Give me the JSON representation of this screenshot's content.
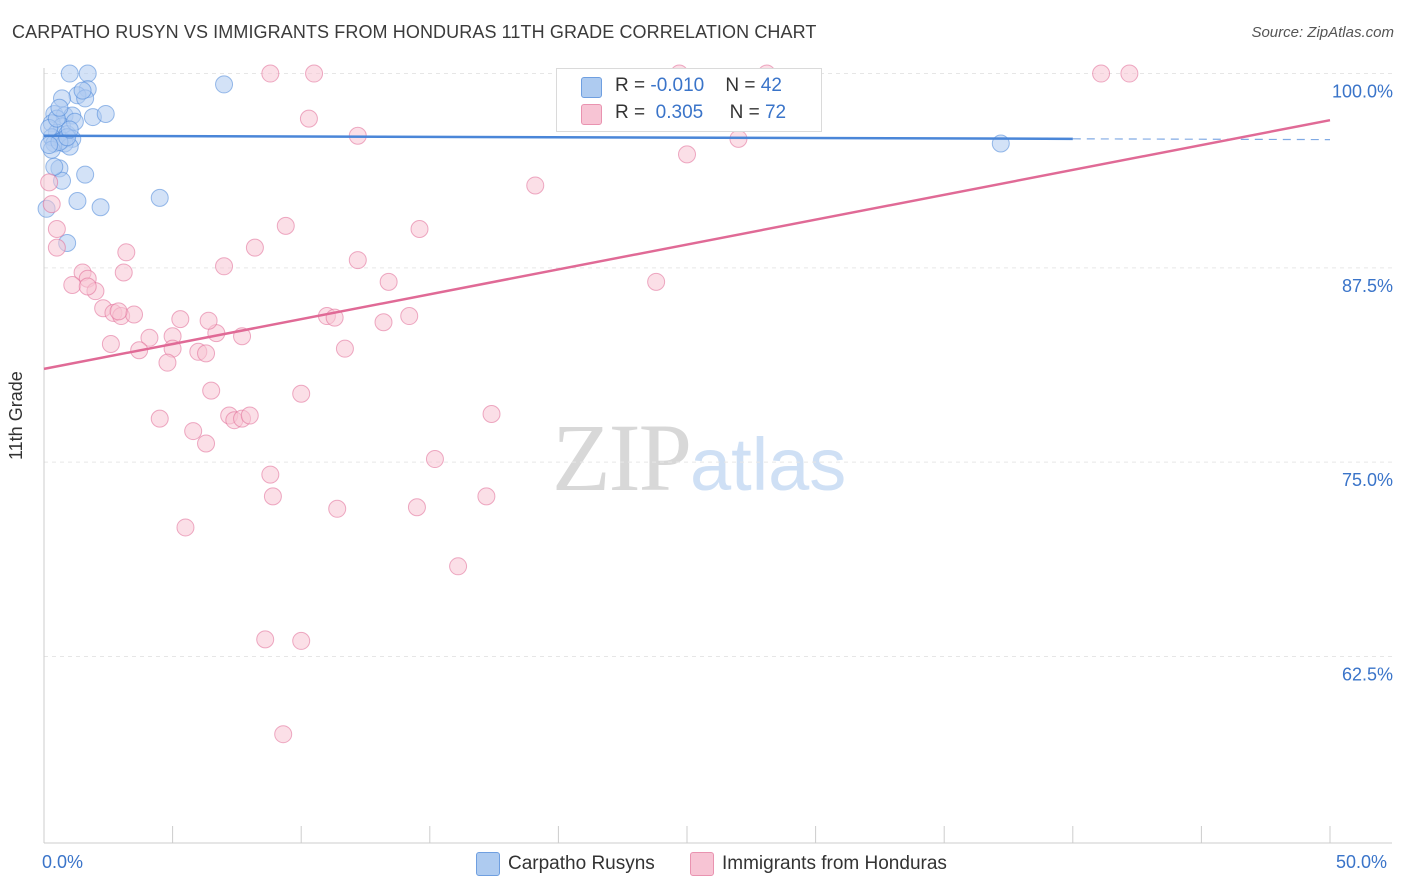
{
  "title": "CARPATHO RUSYN VS IMMIGRANTS FROM HONDURAS 11TH GRADE CORRELATION CHART",
  "source": "Source: ZipAtlas.com",
  "watermark": {
    "zip": "ZIP",
    "atlas": "atlas"
  },
  "legend": {
    "rows": [
      {
        "r_label": "R = ",
        "r_value": "-0.010",
        "n_label": "N = ",
        "n_value": "42",
        "color": "#aecbf0",
        "border": "#6f9fe0"
      },
      {
        "r_label": "R = ",
        "r_value": "0.305",
        "n_label": "N = ",
        "n_value": "72",
        "color": "#f7c4d4",
        "border": "#e993b0"
      }
    ]
  },
  "bottom_legend": [
    {
      "label": "Carpatho Rusyns",
      "color": "#aecbf0",
      "border": "#6f9fe0"
    },
    {
      "label": "Immigrants from Honduras",
      "color": "#f7c4d4",
      "border": "#e993b0"
    }
  ],
  "x_axis_labels": {
    "min": "0.0%",
    "max": "50.0%"
  },
  "chart_data": {
    "type": "scatter",
    "title": "CARPATHO RUSYN VS IMMIGRANTS FROM HONDURAS 11TH GRADE CORRELATION CHART",
    "xlabel": "",
    "ylabel": "11th Grade",
    "xlim": [
      0,
      50
    ],
    "ylim": [
      50.5,
      101
    ],
    "y_ticks": [
      {
        "value": 100,
        "label": "100.0%"
      },
      {
        "value": 87.5,
        "label": "87.5%"
      },
      {
        "value": 75,
        "label": "75.0%"
      },
      {
        "value": 62.5,
        "label": "62.5%"
      }
    ],
    "x_ticks": [
      0,
      5,
      10,
      15,
      20,
      25,
      30,
      35,
      40,
      45,
      50
    ],
    "grid": true,
    "series": [
      {
        "name": "Carpatho Rusyns",
        "color": "#4a86d8",
        "fill": "#aecbf0",
        "r": -0.01,
        "n": 42,
        "trend": {
          "x0": 0,
          "y0": 96.0,
          "x1": 40,
          "y1": 95.8,
          "dash_to": 50
        },
        "points": [
          [
            1.0,
            100.0
          ],
          [
            1.7,
            100.0
          ],
          [
            7.0,
            99.3
          ],
          [
            1.7,
            99.0
          ],
          [
            1.3,
            98.6
          ],
          [
            0.7,
            98.4
          ],
          [
            1.6,
            98.4
          ],
          [
            0.4,
            97.4
          ],
          [
            0.8,
            97.3
          ],
          [
            1.1,
            97.3
          ],
          [
            1.9,
            97.2
          ],
          [
            2.4,
            97.4
          ],
          [
            0.3,
            96.8
          ],
          [
            0.7,
            96.6
          ],
          [
            0.5,
            96.2
          ],
          [
            0.9,
            96.1
          ],
          [
            0.3,
            95.9
          ],
          [
            0.7,
            95.7
          ],
          [
            1.1,
            95.8
          ],
          [
            0.4,
            95.5
          ],
          [
            0.8,
            95.5
          ],
          [
            1.0,
            95.3
          ],
          [
            0.3,
            95.1
          ],
          [
            0.6,
            95.6
          ],
          [
            37.2,
            95.5
          ],
          [
            0.6,
            93.9
          ],
          [
            1.6,
            93.5
          ],
          [
            0.7,
            93.1
          ],
          [
            4.5,
            92.0
          ],
          [
            1.3,
            91.8
          ],
          [
            2.2,
            91.4
          ],
          [
            0.1,
            91.3
          ],
          [
            0.9,
            89.1
          ],
          [
            0.2,
            96.5
          ],
          [
            1.2,
            96.9
          ],
          [
            0.5,
            97.1
          ],
          [
            0.9,
            95.9
          ],
          [
            1.5,
            98.9
          ],
          [
            0.2,
            95.4
          ],
          [
            0.6,
            97.8
          ],
          [
            1.0,
            96.4
          ],
          [
            0.4,
            94.0
          ]
        ]
      },
      {
        "name": "Immigrants from Honduras",
        "color": "#e06a96",
        "fill": "#f7c4d4",
        "r": 0.305,
        "n": 72,
        "trend": {
          "x0": 0,
          "y0": 81.0,
          "x1": 50,
          "y1": 97.0
        },
        "points": [
          [
            8.8,
            100.0
          ],
          [
            10.5,
            100.0
          ],
          [
            24.7,
            100.0
          ],
          [
            28.1,
            100.0
          ],
          [
            41.1,
            100.0
          ],
          [
            42.2,
            100.0
          ],
          [
            10.3,
            97.1
          ],
          [
            12.2,
            96.0
          ],
          [
            27.0,
            95.8
          ],
          [
            25.0,
            94.8
          ],
          [
            19.1,
            92.8
          ],
          [
            0.2,
            93.0
          ],
          [
            9.4,
            90.2
          ],
          [
            14.6,
            90.0
          ],
          [
            0.5,
            90.0
          ],
          [
            0.5,
            88.8
          ],
          [
            8.2,
            88.8
          ],
          [
            3.2,
            88.5
          ],
          [
            12.2,
            88.0
          ],
          [
            7.0,
            87.6
          ],
          [
            1.5,
            87.2
          ],
          [
            3.1,
            87.2
          ],
          [
            1.7,
            86.8
          ],
          [
            1.1,
            86.4
          ],
          [
            13.4,
            86.6
          ],
          [
            23.8,
            86.6
          ],
          [
            2.0,
            86.0
          ],
          [
            2.3,
            84.9
          ],
          [
            2.7,
            84.6
          ],
          [
            3.0,
            84.4
          ],
          [
            3.5,
            84.5
          ],
          [
            5.3,
            84.2
          ],
          [
            11.0,
            84.4
          ],
          [
            11.3,
            84.3
          ],
          [
            13.2,
            84.0
          ],
          [
            14.2,
            84.4
          ],
          [
            4.1,
            83.0
          ],
          [
            5.0,
            83.1
          ],
          [
            6.7,
            83.3
          ],
          [
            7.7,
            83.1
          ],
          [
            2.6,
            82.6
          ],
          [
            3.7,
            82.2
          ],
          [
            5.0,
            82.3
          ],
          [
            11.7,
            82.3
          ],
          [
            6.0,
            82.1
          ],
          [
            6.3,
            82.0
          ],
          [
            4.8,
            81.4
          ],
          [
            6.5,
            79.6
          ],
          [
            10.0,
            79.4
          ],
          [
            17.4,
            78.1
          ],
          [
            4.5,
            77.8
          ],
          [
            7.2,
            78.0
          ],
          [
            7.4,
            77.7
          ],
          [
            7.7,
            77.8
          ],
          [
            5.8,
            77.0
          ],
          [
            6.3,
            76.2
          ],
          [
            15.2,
            75.2
          ],
          [
            8.8,
            74.2
          ],
          [
            8.9,
            72.8
          ],
          [
            17.2,
            72.8
          ],
          [
            11.4,
            72.0
          ],
          [
            14.5,
            72.1
          ],
          [
            5.5,
            70.8
          ],
          [
            16.1,
            68.3
          ],
          [
            8.6,
            63.6
          ],
          [
            10.0,
            63.5
          ],
          [
            9.3,
            57.5
          ],
          [
            0.3,
            91.6
          ],
          [
            1.7,
            86.3
          ],
          [
            2.9,
            84.7
          ],
          [
            6.4,
            84.1
          ],
          [
            8.0,
            78.0
          ]
        ]
      }
    ]
  }
}
